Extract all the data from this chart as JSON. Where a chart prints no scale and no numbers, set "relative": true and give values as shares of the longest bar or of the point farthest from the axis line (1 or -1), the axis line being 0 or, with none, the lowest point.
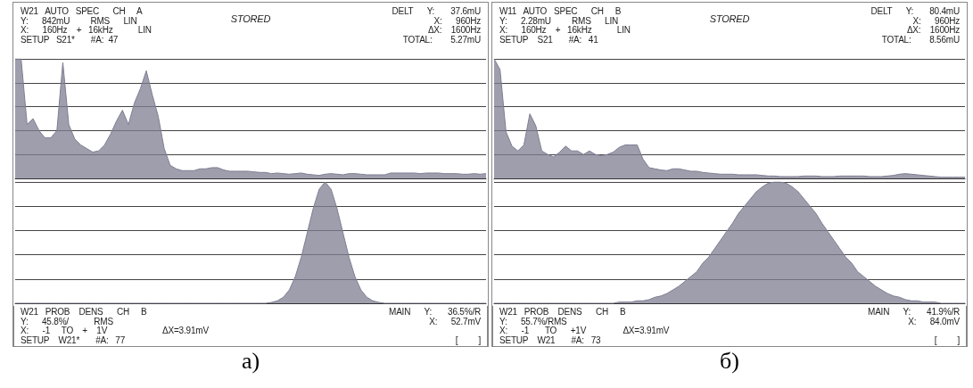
{
  "chart_data": [
    {
      "type": "area",
      "title": "STORED",
      "relative": true,
      "grid": "y",
      "color": "#7e7e92",
      "annotations": [
        "W21   AUTO   SPEC      CH     A",
        "Y:      842mU         RMS      LIN",
        "X:      160Hz    +   16kHz           LIN",
        "SETUP   S21*       #A:  47",
        "DELT      Y:       37.6mU",
        "X:      960Hz",
        "ΔX:    1600Hz",
        "TOTAL:        5.27mU"
      ],
      "categories": [
        null,
        null,
        null,
        null,
        null,
        null,
        null,
        null,
        null,
        null,
        null,
        null,
        null,
        null,
        null,
        null,
        null,
        null,
        null,
        null,
        null,
        null,
        null,
        null,
        null,
        null,
        null,
        null,
        null,
        null,
        null,
        null,
        null,
        null,
        null,
        null,
        null,
        null,
        null,
        null,
        null,
        null,
        null,
        null,
        null,
        null,
        null,
        null,
        null,
        null,
        null,
        null,
        null,
        null,
        null,
        null,
        null,
        null,
        null,
        null,
        null,
        null,
        null,
        null,
        null,
        null,
        null,
        null,
        null,
        null,
        null,
        null,
        null,
        null,
        null,
        null,
        null,
        null,
        null,
        null
      ],
      "values": [
        1,
        1,
        0.45,
        0.5,
        0.4,
        0.34,
        0.34,
        0.4,
        0.97,
        0.45,
        0.33,
        0.28,
        0.25,
        0.22,
        0.23,
        0.28,
        0.37,
        0.48,
        0.57,
        0.45,
        0.63,
        0.75,
        0.9,
        0.7,
        0.52,
        0.25,
        0.11,
        0.08,
        0.065,
        0.065,
        0.065,
        0.08,
        0.08,
        0.09,
        0.09,
        0.07,
        0.06,
        0.06,
        0.06,
        0.06,
        0.055,
        0.05,
        0.05,
        0.04,
        0.045,
        0.04,
        0.035,
        0.04,
        0.045,
        0.035,
        0.03,
        0.025,
        0.035,
        0.04,
        0.035,
        0.03,
        0.04,
        0.04,
        0.035,
        0.03,
        0.03,
        0.03,
        0.03,
        0.045,
        0.045,
        0.045,
        0.045,
        0.045,
        0.04,
        0.045,
        0.045,
        0.045,
        0.04,
        0.04,
        0.04,
        0.035,
        0.035,
        0.04,
        0.035,
        0.04
      ]
    },
    {
      "type": "area",
      "subtitle": "a)",
      "relative": true,
      "grid": "y",
      "color": "#7e7e92",
      "annotations": [
        "W21   PROB    DENS      CH     B",
        "Y:      45.8%/           RMS",
        "X:      -1     TO    +    1V                        ΔX=3.91mV",
        "SETUP    W21*       #A:   77",
        "MAIN      Y:       36.5%/R",
        "X:      52.7mV",
        "[         ]"
      ],
      "categories": [
        null,
        null,
        null,
        null,
        null,
        null,
        null,
        null,
        null,
        null,
        null,
        null,
        null,
        null,
        null,
        null,
        null,
        null,
        null,
        null,
        null,
        null,
        null,
        null,
        null,
        null,
        null,
        null,
        null,
        null,
        null,
        null,
        null,
        null,
        null,
        null,
        null,
        null,
        null,
        null,
        null,
        null,
        null,
        null,
        null,
        null,
        null,
        null,
        null,
        null,
        null,
        null,
        null,
        null,
        null,
        null,
        null,
        null,
        null,
        null,
        null,
        null,
        null,
        null,
        null,
        null,
        null,
        null,
        null,
        null,
        null,
        null,
        null,
        null,
        null,
        null,
        null,
        null,
        null,
        null
      ],
      "values": [
        0,
        0,
        0,
        0,
        0,
        0,
        0,
        0,
        0,
        0,
        0,
        0,
        0,
        0,
        0,
        0,
        0,
        0,
        0,
        0,
        0,
        0,
        0,
        0,
        0,
        0,
        0,
        0,
        0,
        0,
        0,
        0,
        0,
        0,
        0,
        0,
        0,
        0,
        0,
        0,
        0,
        0,
        0,
        0.007,
        0.02,
        0.05,
        0.11,
        0.22,
        0.38,
        0.58,
        0.78,
        0.94,
        1,
        0.94,
        0.78,
        0.58,
        0.38,
        0.22,
        0.11,
        0.05,
        0.02,
        0.007,
        0,
        0,
        0,
        0,
        0,
        0,
        0,
        0,
        0,
        0,
        0,
        0,
        0,
        0,
        0,
        0,
        0,
        0
      ]
    },
    {
      "type": "area",
      "title": "STORED",
      "relative": true,
      "grid": "y",
      "color": "#7e7e92",
      "annotations": [
        "W11   AUTO   SPEC      CH     B",
        "Y:      2.28mU         RMS      LIN",
        "X:      160Hz    +   16kHz           LIN",
        "SETUP    S21       #A:   41",
        "DELT      Y:       80.4mU",
        "X:      960Hz",
        "ΔX:    1600Hz",
        "TOTAL:        8.56mU"
      ],
      "categories": [
        null,
        null,
        null,
        null,
        null,
        null,
        null,
        null,
        null,
        null,
        null,
        null,
        null,
        null,
        null,
        null,
        null,
        null,
        null,
        null,
        null,
        null,
        null,
        null,
        null,
        null,
        null,
        null,
        null,
        null,
        null,
        null,
        null,
        null,
        null,
        null,
        null,
        null,
        null,
        null,
        null,
        null,
        null,
        null,
        null,
        null,
        null,
        null,
        null,
        null,
        null,
        null,
        null,
        null,
        null,
        null,
        null,
        null,
        null,
        null,
        null,
        null,
        null,
        null,
        null,
        null,
        null,
        null,
        null,
        null,
        null,
        null,
        null,
        null,
        null,
        null,
        null,
        null,
        null,
        null
      ],
      "values": [
        1,
        0.91,
        0.39,
        0.27,
        0.23,
        0.28,
        0.54,
        0.44,
        0.23,
        0.2,
        0.18,
        0.22,
        0.27,
        0.23,
        0.23,
        0.2,
        0.23,
        0.2,
        0.19,
        0.2,
        0.22,
        0.26,
        0.28,
        0.28,
        0.28,
        0.16,
        0.09,
        0.08,
        0.07,
        0.065,
        0.08,
        0.08,
        0.07,
        0.06,
        0.06,
        0.05,
        0.045,
        0.04,
        0.035,
        0.035,
        0.035,
        0.03,
        0.03,
        0.03,
        0.03,
        0.025,
        0.02,
        0.02,
        0.015,
        0.015,
        0.015,
        0.015,
        0.02,
        0.02,
        0.02,
        0.015,
        0.015,
        0.015,
        0.02,
        0.02,
        0.02,
        0.02,
        0.02,
        0.015,
        0.015,
        0.015,
        0.02,
        0.025,
        0.035,
        0.04,
        0.035,
        0.03,
        0.025,
        0.02,
        0.015,
        0.01,
        0.01,
        0.01,
        0.01,
        0.01
      ]
    },
    {
      "type": "area",
      "subtitle": "б)",
      "relative": true,
      "grid": "y",
      "color": "#7e7e92",
      "annotations": [
        "W21   PROB    DENS      CH     B",
        "Y:      55.7%/RMS",
        "X:      -1       TO      +1V                ΔX=3.91mV",
        "SETUP    W21       #A:   73",
        "MAIN      Y:       41.9%/R",
        "X:      84.0mV",
        "[         ]"
      ],
      "categories": [
        null,
        null,
        null,
        null,
        null,
        null,
        null,
        null,
        null,
        null,
        null,
        null,
        null,
        null,
        null,
        null,
        null,
        null,
        null,
        null,
        null,
        null,
        null,
        null,
        null,
        null,
        null,
        null,
        null,
        null,
        null,
        null,
        null,
        null,
        null,
        null,
        null,
        null,
        null,
        null,
        null,
        null,
        null,
        null,
        null,
        null,
        null,
        null,
        null,
        null,
        null,
        null,
        null,
        null,
        null,
        null,
        null,
        null,
        null,
        null,
        null,
        null,
        null,
        null,
        null,
        null,
        null,
        null,
        null,
        null,
        null,
        null,
        null,
        null,
        null,
        null,
        null,
        null,
        null,
        null
      ],
      "values": [
        0,
        0,
        0,
        0,
        0,
        0,
        0,
        0,
        0,
        0,
        0,
        0,
        0,
        0,
        0,
        0,
        0,
        0,
        0,
        0,
        0,
        0.01,
        0.01,
        0.01,
        0.02,
        0.02,
        0.03,
        0.05,
        0.06,
        0.08,
        0.11,
        0.14,
        0.18,
        0.22,
        0.26,
        0.33,
        0.38,
        0.45,
        0.52,
        0.59,
        0.66,
        0.74,
        0.8,
        0.86,
        0.92,
        0.96,
        0.99,
        1,
        1,
        0.99,
        0.96,
        0.92,
        0.86,
        0.8,
        0.74,
        0.66,
        0.59,
        0.52,
        0.45,
        0.38,
        0.33,
        0.26,
        0.22,
        0.18,
        0.14,
        0.11,
        0.08,
        0.06,
        0.05,
        0.03,
        0.02,
        0.02,
        0.01,
        0.01,
        0.01,
        0,
        0,
        0,
        0,
        0
      ]
    }
  ]
}
